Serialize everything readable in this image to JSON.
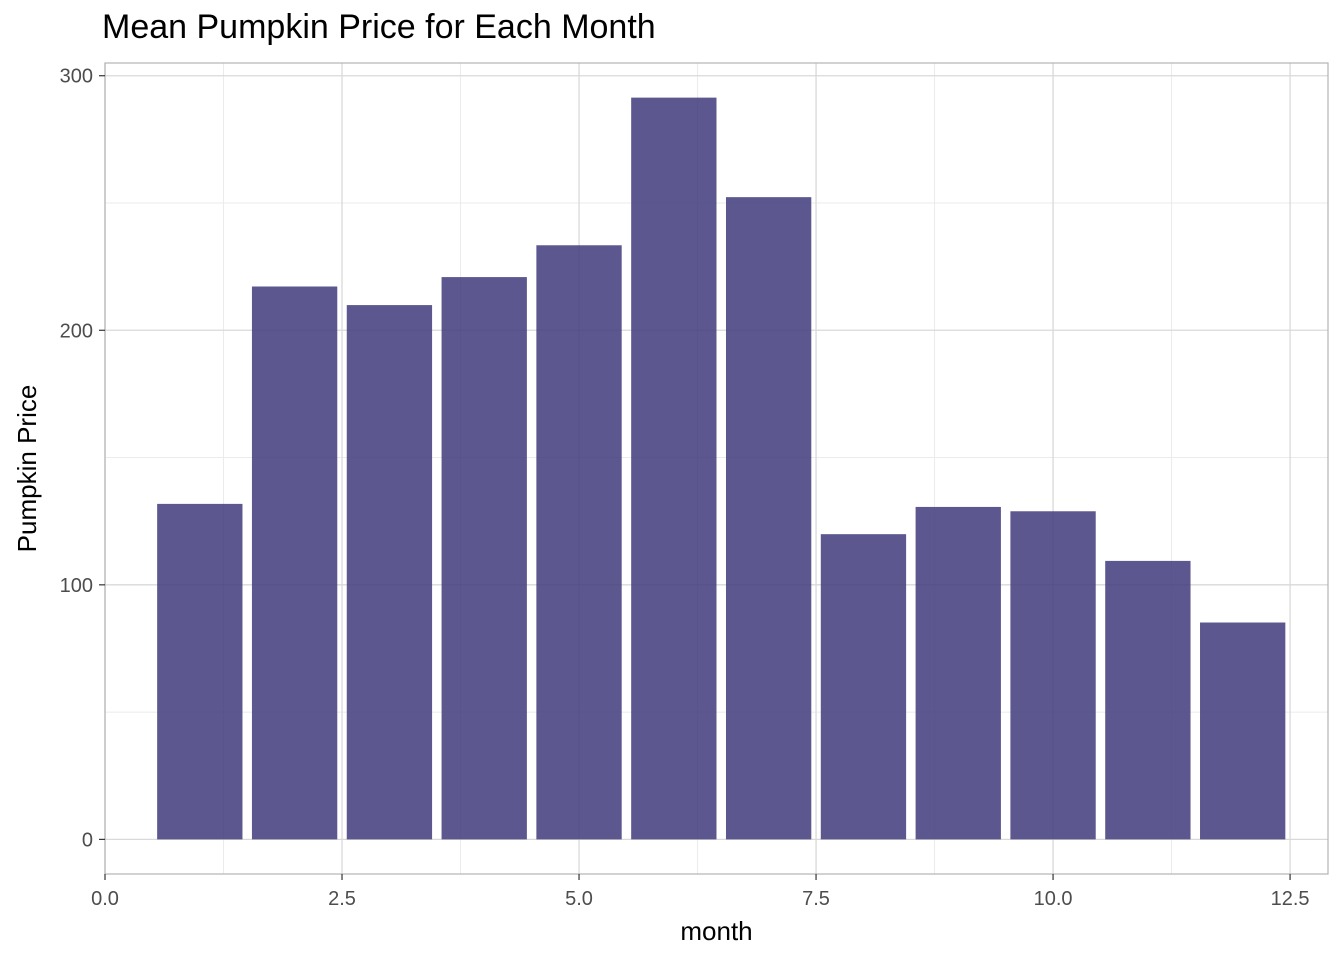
{
  "chart_data": {
    "type": "bar",
    "title": "Mean Pumpkin Price for Each Month",
    "xlabel": "month",
    "ylabel": "Pumpkin Price",
    "x": [
      1,
      2,
      3,
      4,
      5,
      6,
      7,
      8,
      9,
      10,
      11,
      12
    ],
    "values": [
      131.8,
      217.2,
      209.9,
      220.9,
      233.4,
      291.4,
      252.3,
      119.9,
      130.6,
      128.9,
      109.4,
      85.2
    ],
    "xlim": [
      0,
      12.9
    ],
    "ylim": [
      -13.6,
      305
    ],
    "x_ticks": [
      0,
      2.5,
      5,
      7.5,
      10,
      12.5
    ],
    "x_tick_labels": [
      "0.0",
      "2.5",
      "5.0",
      "7.5",
      "10.0",
      "12.5"
    ],
    "y_ticks": [
      0,
      100,
      200,
      300
    ],
    "y_tick_labels": [
      "0",
      "100",
      "200",
      "300"
    ],
    "grid": true,
    "bar_color": "#3f3b7b",
    "bar_opacity": 0.85,
    "grid_major_color": "#d9d9d9",
    "grid_minor_color": "#ebebeb",
    "panel_border_color": "#b3b3b3"
  }
}
